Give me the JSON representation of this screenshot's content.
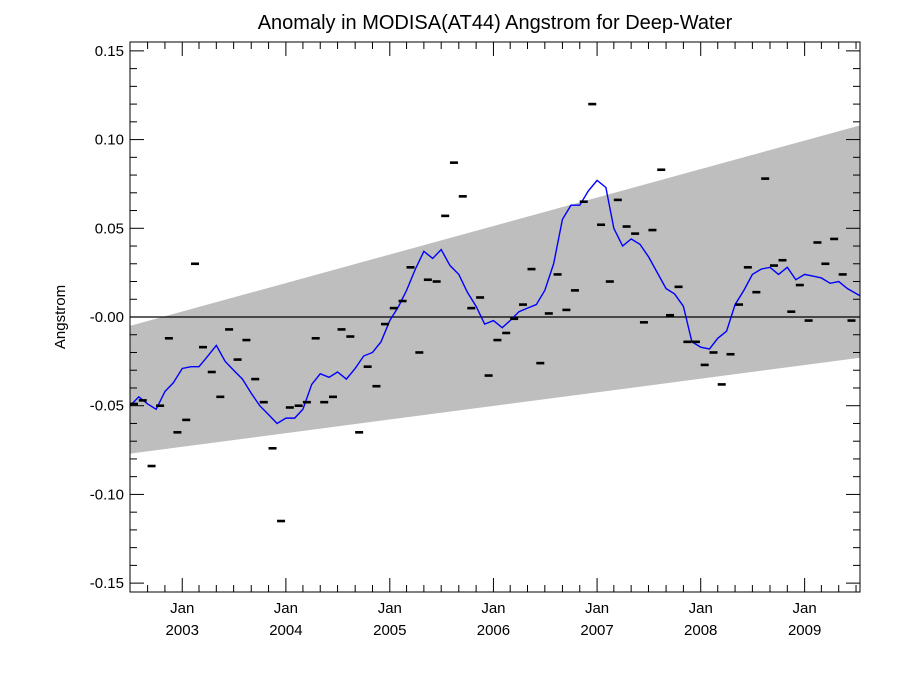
{
  "chart_data": {
    "type": "line",
    "title": "Anomaly in MODISA(AT44) Angstrom for Deep-Water",
    "ylabel": "Angstrom",
    "xlabel": "",
    "xlim": [
      "2002-07-01",
      "2009-07-15"
    ],
    "ylim": [
      -0.155,
      0.155
    ],
    "grid": false,
    "y_ticks": [
      {
        "value": 0.15,
        "label": "0.15"
      },
      {
        "value": 0.1,
        "label": "0.10"
      },
      {
        "value": 0.05,
        "label": "0.05"
      },
      {
        "value": 0.0,
        "label": "-0.00"
      },
      {
        "value": -0.05,
        "label": "-0.05"
      },
      {
        "value": -0.1,
        "label": "-0.10"
      },
      {
        "value": -0.15,
        "label": "-0.15"
      }
    ],
    "x_ticks": [
      {
        "date": "2003-01-01",
        "month": "Jan",
        "year": "2003"
      },
      {
        "date": "2004-01-01",
        "month": "Jan",
        "year": "2004"
      },
      {
        "date": "2005-01-01",
        "month": "Jan",
        "year": "2005"
      },
      {
        "date": "2006-01-01",
        "month": "Jan",
        "year": "2006"
      },
      {
        "date": "2007-01-01",
        "month": "Jan",
        "year": "2007"
      },
      {
        "date": "2008-01-01",
        "month": "Jan",
        "year": "2008"
      },
      {
        "date": "2009-01-01",
        "month": "Jan",
        "year": "2009"
      }
    ],
    "zero_line": 0.0,
    "band": {
      "color": "#bebebe",
      "upper": [
        {
          "date": "2002-07-01",
          "y": -0.005
        },
        {
          "date": "2009-07-15",
          "y": 0.108
        }
      ],
      "lower": [
        {
          "date": "2002-07-01",
          "y": -0.077
        },
        {
          "date": "2009-07-15",
          "y": -0.023
        }
      ]
    },
    "series": [
      {
        "style": "marker-dash",
        "color": "#000000",
        "points": [
          {
            "x": "2002-07-15",
            "y": -0.049
          },
          {
            "x": "2002-08-15",
            "y": -0.047
          },
          {
            "x": "2002-09-15",
            "y": -0.084
          },
          {
            "x": "2002-10-15",
            "y": -0.05
          },
          {
            "x": "2002-11-15",
            "y": -0.012
          },
          {
            "x": "2002-12-15",
            "y": -0.065
          },
          {
            "x": "2003-01-15",
            "y": -0.058
          },
          {
            "x": "2003-02-15",
            "y": 0.03
          },
          {
            "x": "2003-03-15",
            "y": -0.017
          },
          {
            "x": "2003-04-15",
            "y": -0.031
          },
          {
            "x": "2003-05-15",
            "y": -0.045
          },
          {
            "x": "2003-06-15",
            "y": -0.007
          },
          {
            "x": "2003-07-15",
            "y": -0.024
          },
          {
            "x": "2003-08-15",
            "y": -0.013
          },
          {
            "x": "2003-09-15",
            "y": -0.035
          },
          {
            "x": "2003-10-15",
            "y": -0.048
          },
          {
            "x": "2003-11-15",
            "y": -0.074
          },
          {
            "x": "2003-12-15",
            "y": -0.115
          },
          {
            "x": "2004-01-15",
            "y": -0.051
          },
          {
            "x": "2004-02-15",
            "y": -0.05
          },
          {
            "x": "2004-03-15",
            "y": -0.048
          },
          {
            "x": "2004-04-15",
            "y": -0.012
          },
          {
            "x": "2004-05-15",
            "y": -0.048
          },
          {
            "x": "2004-06-15",
            "y": -0.045
          },
          {
            "x": "2004-07-15",
            "y": -0.007
          },
          {
            "x": "2004-08-15",
            "y": -0.011
          },
          {
            "x": "2004-09-15",
            "y": -0.065
          },
          {
            "x": "2004-10-15",
            "y": -0.028
          },
          {
            "x": "2004-11-15",
            "y": -0.039
          },
          {
            "x": "2004-12-15",
            "y": -0.004
          },
          {
            "x": "2005-01-15",
            "y": 0.005
          },
          {
            "x": "2005-02-15",
            "y": 0.009
          },
          {
            "x": "2005-03-15",
            "y": 0.028
          },
          {
            "x": "2005-04-15",
            "y": -0.02
          },
          {
            "x": "2005-05-15",
            "y": 0.021
          },
          {
            "x": "2005-06-15",
            "y": 0.02
          },
          {
            "x": "2005-07-15",
            "y": 0.057
          },
          {
            "x": "2005-08-15",
            "y": 0.087
          },
          {
            "x": "2005-09-15",
            "y": 0.068
          },
          {
            "x": "2005-10-15",
            "y": 0.005
          },
          {
            "x": "2005-11-15",
            "y": 0.011
          },
          {
            "x": "2005-12-15",
            "y": -0.033
          },
          {
            "x": "2006-01-15",
            "y": -0.013
          },
          {
            "x": "2006-02-15",
            "y": -0.009
          },
          {
            "x": "2006-03-15",
            "y": -0.001
          },
          {
            "x": "2006-04-15",
            "y": 0.007
          },
          {
            "x": "2006-05-15",
            "y": 0.027
          },
          {
            "x": "2006-06-15",
            "y": -0.026
          },
          {
            "x": "2006-07-15",
            "y": 0.002
          },
          {
            "x": "2006-08-15",
            "y": 0.024
          },
          {
            "x": "2006-09-15",
            "y": 0.004
          },
          {
            "x": "2006-10-15",
            "y": 0.015
          },
          {
            "x": "2006-11-15",
            "y": 0.065
          },
          {
            "x": "2006-12-15",
            "y": 0.12
          },
          {
            "x": "2007-01-15",
            "y": 0.052
          },
          {
            "x": "2007-02-15",
            "y": 0.02
          },
          {
            "x": "2007-03-15",
            "y": 0.066
          },
          {
            "x": "2007-04-15",
            "y": 0.051
          },
          {
            "x": "2007-05-15",
            "y": 0.047
          },
          {
            "x": "2007-06-15",
            "y": -0.003
          },
          {
            "x": "2007-07-15",
            "y": 0.049
          },
          {
            "x": "2007-08-15",
            "y": 0.083
          },
          {
            "x": "2007-09-15",
            "y": 0.001
          },
          {
            "x": "2007-10-15",
            "y": 0.017
          },
          {
            "x": "2007-11-15",
            "y": -0.014
          },
          {
            "x": "2007-12-15",
            "y": -0.014
          },
          {
            "x": "2008-01-15",
            "y": -0.027
          },
          {
            "x": "2008-02-15",
            "y": -0.02
          },
          {
            "x": "2008-03-15",
            "y": -0.038
          },
          {
            "x": "2008-04-15",
            "y": -0.021
          },
          {
            "x": "2008-05-15",
            "y": 0.007
          },
          {
            "x": "2008-06-15",
            "y": 0.028
          },
          {
            "x": "2008-07-15",
            "y": 0.014
          },
          {
            "x": "2008-08-15",
            "y": 0.078
          },
          {
            "x": "2008-09-15",
            "y": 0.029
          },
          {
            "x": "2008-10-15",
            "y": 0.032
          },
          {
            "x": "2008-11-15",
            "y": 0.003
          },
          {
            "x": "2008-12-15",
            "y": 0.018
          },
          {
            "x": "2009-01-15",
            "y": -0.002
          },
          {
            "x": "2009-02-15",
            "y": 0.042
          },
          {
            "x": "2009-03-15",
            "y": 0.03
          },
          {
            "x": "2009-04-15",
            "y": 0.044
          },
          {
            "x": "2009-05-15",
            "y": 0.024
          },
          {
            "x": "2009-06-15",
            "y": -0.002
          }
        ]
      },
      {
        "style": "line",
        "color": "#0000ff",
        "points": [
          {
            "x": "2002-07-01",
            "y": -0.05
          },
          {
            "x": "2002-08-01",
            "y": -0.045
          },
          {
            "x": "2002-09-01",
            "y": -0.049
          },
          {
            "x": "2002-10-01",
            "y": -0.052
          },
          {
            "x": "2002-11-01",
            "y": -0.042
          },
          {
            "x": "2002-12-01",
            "y": -0.037
          },
          {
            "x": "2003-01-01",
            "y": -0.029
          },
          {
            "x": "2003-02-01",
            "y": -0.028
          },
          {
            "x": "2003-03-01",
            "y": -0.028
          },
          {
            "x": "2003-04-01",
            "y": -0.022
          },
          {
            "x": "2003-05-01",
            "y": -0.016
          },
          {
            "x": "2003-06-01",
            "y": -0.025
          },
          {
            "x": "2003-07-01",
            "y": -0.03
          },
          {
            "x": "2003-08-01",
            "y": -0.035
          },
          {
            "x": "2003-09-01",
            "y": -0.043
          },
          {
            "x": "2003-10-01",
            "y": -0.05
          },
          {
            "x": "2003-11-01",
            "y": -0.055
          },
          {
            "x": "2003-12-01",
            "y": -0.06
          },
          {
            "x": "2004-01-01",
            "y": -0.057
          },
          {
            "x": "2004-02-01",
            "y": -0.057
          },
          {
            "x": "2004-03-01",
            "y": -0.052
          },
          {
            "x": "2004-04-01",
            "y": -0.038
          },
          {
            "x": "2004-05-01",
            "y": -0.032
          },
          {
            "x": "2004-06-01",
            "y": -0.034
          },
          {
            "x": "2004-07-01",
            "y": -0.031
          },
          {
            "x": "2004-08-01",
            "y": -0.035
          },
          {
            "x": "2004-09-01",
            "y": -0.029
          },
          {
            "x": "2004-10-01",
            "y": -0.022
          },
          {
            "x": "2004-11-01",
            "y": -0.02
          },
          {
            "x": "2004-12-01",
            "y": -0.014
          },
          {
            "x": "2005-01-01",
            "y": -0.002
          },
          {
            "x": "2005-02-01",
            "y": 0.006
          },
          {
            "x": "2005-03-01",
            "y": 0.015
          },
          {
            "x": "2005-04-01",
            "y": 0.027
          },
          {
            "x": "2005-05-01",
            "y": 0.037
          },
          {
            "x": "2005-06-01",
            "y": 0.033
          },
          {
            "x": "2005-07-01",
            "y": 0.038
          },
          {
            "x": "2005-08-01",
            "y": 0.029
          },
          {
            "x": "2005-09-01",
            "y": 0.024
          },
          {
            "x": "2005-10-01",
            "y": 0.014
          },
          {
            "x": "2005-11-01",
            "y": 0.006
          },
          {
            "x": "2005-12-01",
            "y": -0.004
          },
          {
            "x": "2006-01-01",
            "y": -0.002
          },
          {
            "x": "2006-02-01",
            "y": -0.006
          },
          {
            "x": "2006-03-01",
            "y": -0.002
          },
          {
            "x": "2006-04-01",
            "y": 0.003
          },
          {
            "x": "2006-05-01",
            "y": 0.005
          },
          {
            "x": "2006-06-01",
            "y": 0.007
          },
          {
            "x": "2006-07-01",
            "y": 0.015
          },
          {
            "x": "2006-08-01",
            "y": 0.03
          },
          {
            "x": "2006-09-01",
            "y": 0.055
          },
          {
            "x": "2006-10-01",
            "y": 0.063
          },
          {
            "x": "2006-11-01",
            "y": 0.063
          },
          {
            "x": "2006-12-01",
            "y": 0.071
          },
          {
            "x": "2007-01-01",
            "y": 0.077
          },
          {
            "x": "2007-02-01",
            "y": 0.073
          },
          {
            "x": "2007-03-01",
            "y": 0.05
          },
          {
            "x": "2007-04-01",
            "y": 0.04
          },
          {
            "x": "2007-05-01",
            "y": 0.044
          },
          {
            "x": "2007-06-01",
            "y": 0.041
          },
          {
            "x": "2007-07-01",
            "y": 0.034
          },
          {
            "x": "2007-08-01",
            "y": 0.025
          },
          {
            "x": "2007-09-01",
            "y": 0.016
          },
          {
            "x": "2007-10-01",
            "y": 0.013
          },
          {
            "x": "2007-11-01",
            "y": 0.006
          },
          {
            "x": "2007-12-01",
            "y": -0.014
          },
          {
            "x": "2008-01-01",
            "y": -0.017
          },
          {
            "x": "2008-02-01",
            "y": -0.018
          },
          {
            "x": "2008-03-01",
            "y": -0.012
          },
          {
            "x": "2008-04-01",
            "y": -0.008
          },
          {
            "x": "2008-05-01",
            "y": 0.007
          },
          {
            "x": "2008-06-01",
            "y": 0.015
          },
          {
            "x": "2008-07-01",
            "y": 0.024
          },
          {
            "x": "2008-08-01",
            "y": 0.027
          },
          {
            "x": "2008-09-01",
            "y": 0.028
          },
          {
            "x": "2008-10-01",
            "y": 0.024
          },
          {
            "x": "2008-11-01",
            "y": 0.028
          },
          {
            "x": "2008-12-01",
            "y": 0.021
          },
          {
            "x": "2009-01-01",
            "y": 0.024
          },
          {
            "x": "2009-02-01",
            "y": 0.023
          },
          {
            "x": "2009-03-01",
            "y": 0.022
          },
          {
            "x": "2009-04-01",
            "y": 0.019
          },
          {
            "x": "2009-05-01",
            "y": 0.02
          },
          {
            "x": "2009-06-01",
            "y": 0.016
          },
          {
            "x": "2009-07-15",
            "y": 0.012
          }
        ]
      }
    ]
  }
}
